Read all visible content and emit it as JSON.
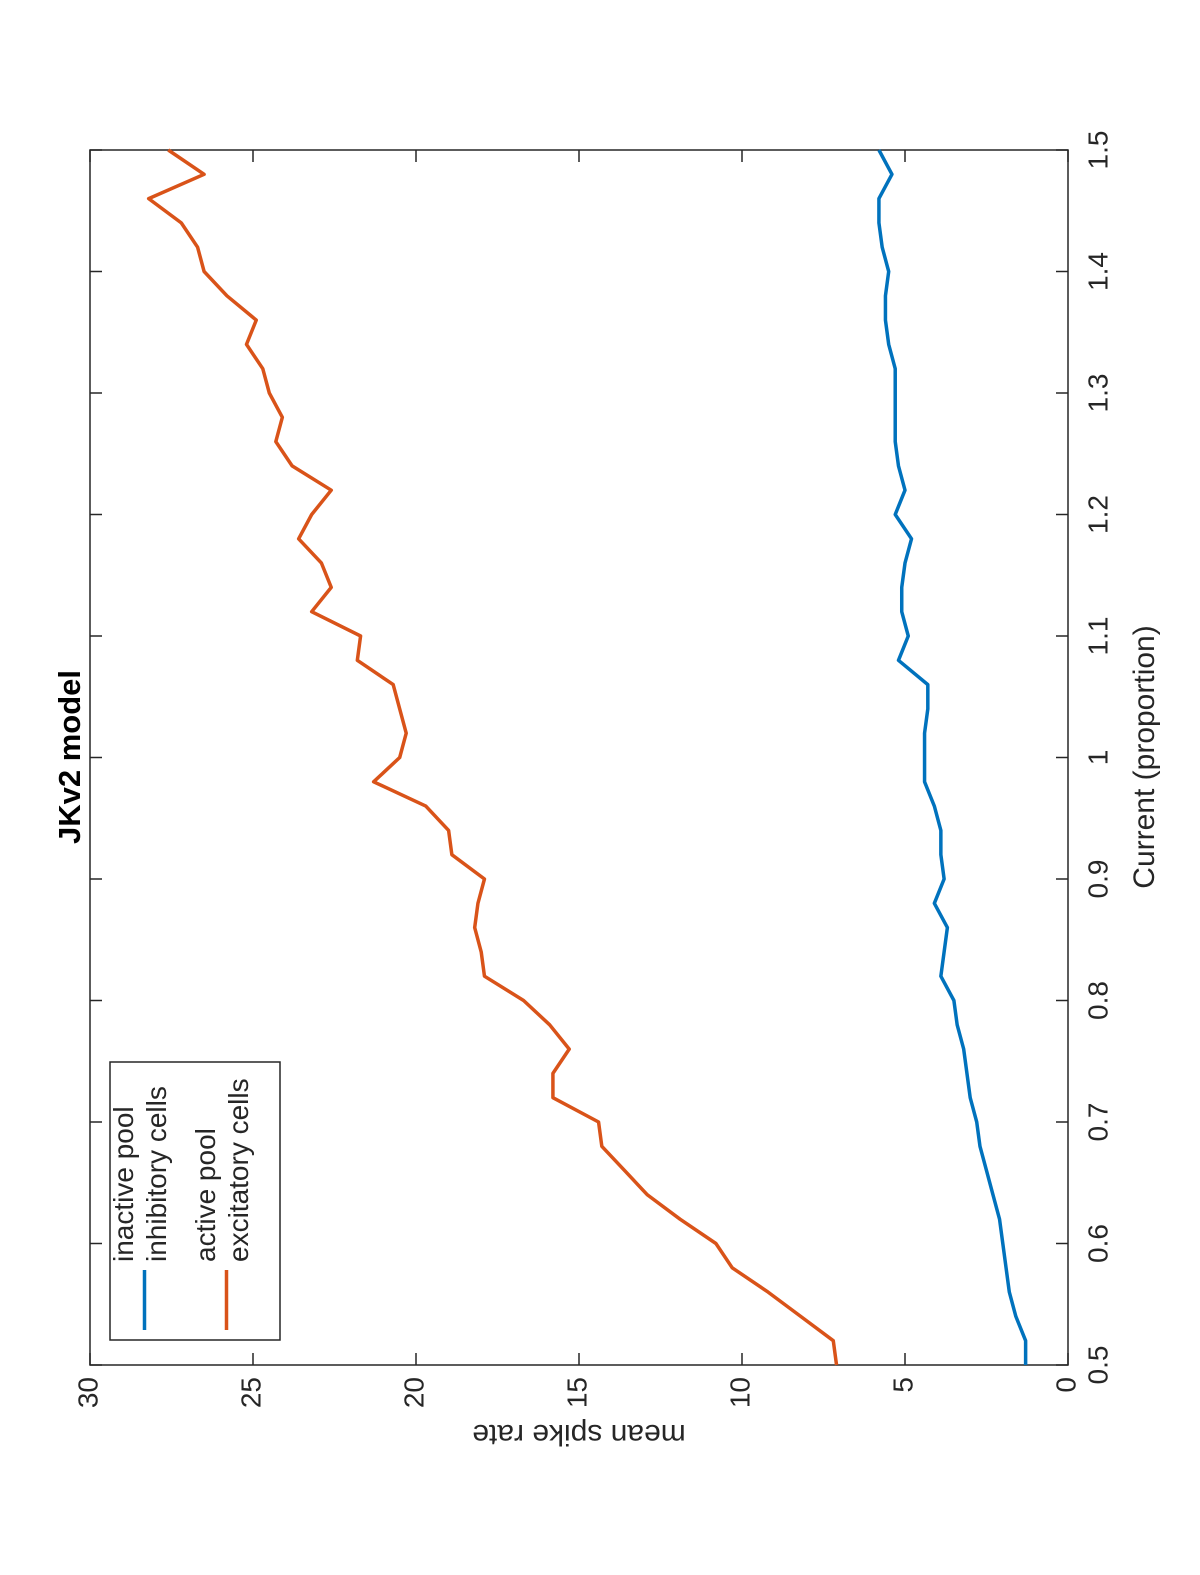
{
  "chart_data": {
    "type": "line",
    "title": "JKv2 model",
    "xlabel": "Current (proportion)",
    "ylabel": "mean spike rate",
    "x": [
      0.5,
      0.52,
      0.54,
      0.56,
      0.58,
      0.6,
      0.62,
      0.64,
      0.66,
      0.68,
      0.7,
      0.72,
      0.74,
      0.76,
      0.78,
      0.8,
      0.82,
      0.84,
      0.86,
      0.88,
      0.9,
      0.92,
      0.94,
      0.96,
      0.98,
      1.0,
      1.02,
      1.04,
      1.06,
      1.08,
      1.1,
      1.12,
      1.14,
      1.16,
      1.18,
      1.2,
      1.22,
      1.24,
      1.26,
      1.28,
      1.3,
      1.32,
      1.34,
      1.36,
      1.38,
      1.4,
      1.42,
      1.44,
      1.46,
      1.48,
      1.5
    ],
    "series": [
      {
        "name": "inactive pool\ninhibitory cells",
        "color": "#0072bd",
        "values": [
          1.3,
          1.3,
          1.6,
          1.8,
          1.9,
          2.0,
          2.1,
          2.3,
          2.5,
          2.7,
          2.8,
          3.0,
          3.1,
          3.2,
          3.4,
          3.5,
          3.9,
          3.8,
          3.7,
          4.1,
          3.8,
          3.9,
          3.9,
          4.1,
          4.4,
          4.4,
          4.4,
          4.3,
          4.3,
          5.2,
          4.9,
          5.1,
          5.1,
          5.0,
          4.8,
          5.3,
          5.0,
          5.2,
          5.3,
          5.3,
          5.3,
          5.3,
          5.5,
          5.6,
          5.6,
          5.5,
          5.7,
          5.8,
          5.8,
          5.4,
          5.8
        ]
      },
      {
        "name": "active pool\nexcitatory cells",
        "color": "#d95319",
        "values": [
          7.1,
          7.2,
          8.2,
          9.2,
          10.3,
          10.8,
          11.9,
          12.9,
          13.6,
          14.3,
          14.4,
          15.8,
          15.8,
          15.3,
          15.9,
          16.7,
          17.9,
          18.0,
          18.2,
          18.1,
          17.9,
          18.9,
          19.0,
          19.7,
          21.3,
          20.5,
          20.3,
          20.5,
          20.7,
          21.8,
          21.7,
          23.2,
          22.6,
          22.9,
          23.6,
          23.2,
          22.6,
          23.8,
          24.3,
          24.1,
          24.5,
          24.7,
          25.2,
          24.9,
          25.8,
          26.5,
          26.7,
          27.2,
          28.2,
          26.5,
          27.6
        ]
      }
    ],
    "xlim": [
      0.5,
      1.5
    ],
    "xticks": [
      0.5,
      0.6,
      0.7,
      0.8,
      0.9,
      1,
      1.1,
      1.2,
      1.3,
      1.4,
      1.5
    ],
    "ylim": [
      0,
      30
    ],
    "yticks": [
      0,
      5,
      10,
      15,
      20,
      25,
      30
    ],
    "grid": false,
    "legend": "northwest"
  }
}
